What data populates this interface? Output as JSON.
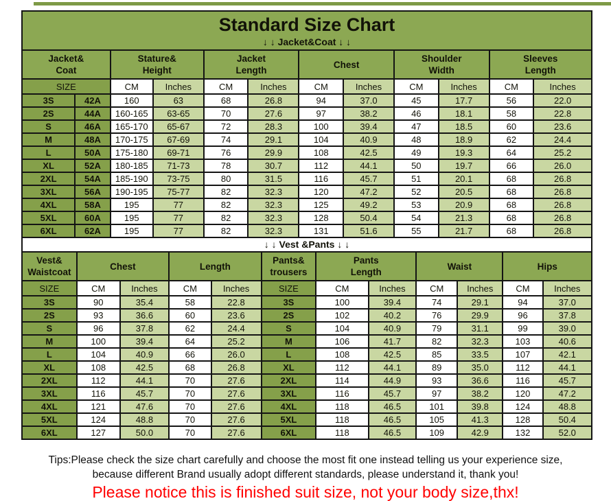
{
  "page": {
    "title": "Standard Size Chart",
    "jacket_banner": "↓ ↓  Jacket&Coat ↓ ↓",
    "vest_banner": "↓ ↓  Vest &Pants ↓ ↓",
    "tips_line1": "Tips:Please check the size chart carefully and choose the most fit one instead telling us your experience size,",
    "tips_line2": "because different Brand usually adopt different standards, please understand it, thank you!",
    "notice": "Please notice this is finished suit size, not your body size,thx!"
  },
  "colors": {
    "header_green": "#8CA853",
    "size_green": "#85A04A",
    "light_green": "#C9D7A2",
    "strip_green": "#7E9A46",
    "border_black": "#141414",
    "notice_red": "#FF0000"
  },
  "chart_data": [
    {
      "type": "table",
      "name": "jacket-coat-size-table",
      "section_label": "↓ ↓  Jacket&Coat ↓ ↓",
      "group_headers": [
        {
          "label": "Jacket&\nCoat",
          "span": 2
        },
        {
          "label": "Stature&\nHeight",
          "span": 2
        },
        {
          "label": "Jacket\nLength",
          "span": 2
        },
        {
          "label": "Chest",
          "span": 2
        },
        {
          "label": "Shoulder\nWidth",
          "span": 2
        },
        {
          "label": "Sleeves\nLength",
          "span": 2
        }
      ],
      "unit_row": [
        {
          "label": "SIZE",
          "span": 2,
          "type": "size"
        },
        {
          "label": "CM",
          "span": 1,
          "type": "cm"
        },
        {
          "label": "Inches",
          "span": 1,
          "type": "in"
        },
        {
          "label": "CM",
          "span": 1,
          "type": "cm"
        },
        {
          "label": "Inches",
          "span": 1,
          "type": "in"
        },
        {
          "label": "CM",
          "span": 1,
          "type": "cm"
        },
        {
          "label": "Inches",
          "span": 1,
          "type": "in"
        },
        {
          "label": "CM",
          "span": 1,
          "type": "cm"
        },
        {
          "label": "Inches",
          "span": 1,
          "type": "in"
        },
        {
          "label": "CM",
          "span": 1,
          "type": "cm"
        },
        {
          "label": "Inches",
          "span": 1,
          "type": "in"
        }
      ],
      "col_types": [
        "size",
        "size",
        "cm",
        "in",
        "cm",
        "in",
        "cm",
        "in",
        "cm",
        "in",
        "cm",
        "in"
      ],
      "col_widths_pct": [
        9.3,
        6.2,
        7.5,
        8.9,
        7.8,
        8.9,
        7.8,
        8.9,
        7.8,
        8.9,
        7.8,
        10.2
      ],
      "rows": [
        [
          "3S",
          "42A",
          "160",
          "63",
          "68",
          "26.8",
          "94",
          "37.0",
          "45",
          "17.7",
          "56",
          "22.0"
        ],
        [
          "2S",
          "44A",
          "160-165",
          "63-65",
          "70",
          "27.6",
          "97",
          "38.2",
          "46",
          "18.1",
          "58",
          "22.8"
        ],
        [
          "S",
          "46A",
          "165-170",
          "65-67",
          "72",
          "28.3",
          "100",
          "39.4",
          "47",
          "18.5",
          "60",
          "23.6"
        ],
        [
          "M",
          "48A",
          "170-175",
          "67-69",
          "74",
          "29.1",
          "104",
          "40.9",
          "48",
          "18.9",
          "62",
          "24.4"
        ],
        [
          "L",
          "50A",
          "175-180",
          "69-71",
          "76",
          "29.9",
          "108",
          "42.5",
          "49",
          "19.3",
          "64",
          "25.2"
        ],
        [
          "XL",
          "52A",
          "180-185",
          "71-73",
          "78",
          "30.7",
          "112",
          "44.1",
          "50",
          "19.7",
          "66",
          "26.0"
        ],
        [
          "2XL",
          "54A",
          "185-190",
          "73-75",
          "80",
          "31.5",
          "116",
          "45.7",
          "51",
          "20.1",
          "68",
          "26.8"
        ],
        [
          "3XL",
          "56A",
          "190-195",
          "75-77",
          "82",
          "32.3",
          "120",
          "47.2",
          "52",
          "20.5",
          "68",
          "26.8"
        ],
        [
          "4XL",
          "58A",
          "195",
          "77",
          "82",
          "32.3",
          "125",
          "49.2",
          "53",
          "20.9",
          "68",
          "26.8"
        ],
        [
          "5XL",
          "60A",
          "195",
          "77",
          "82",
          "32.3",
          "128",
          "50.4",
          "54",
          "21.3",
          "68",
          "26.8"
        ],
        [
          "6XL",
          "62A",
          "195",
          "77",
          "82",
          "32.3",
          "131",
          "51.6",
          "55",
          "21.7",
          "68",
          "26.8"
        ]
      ]
    },
    {
      "type": "table",
      "name": "vest-pants-size-table",
      "section_label": "↓ ↓  Vest &Pants ↓ ↓",
      "group_headers": [
        {
          "label": "Vest&\nWaistcoat",
          "span": 1
        },
        {
          "label": "Chest",
          "span": 2
        },
        {
          "label": "Length",
          "span": 2
        },
        {
          "label": "Pants&\ntrousers",
          "span": 1
        },
        {
          "label": "Pants\nLength",
          "span": 2
        },
        {
          "label": "Waist",
          "span": 2
        },
        {
          "label": "Hips",
          "span": 2
        }
      ],
      "unit_row": [
        {
          "label": "SIZE",
          "span": 1,
          "type": "size"
        },
        {
          "label": "CM",
          "span": 1,
          "type": "cm"
        },
        {
          "label": "Inches",
          "span": 1,
          "type": "in"
        },
        {
          "label": "CM",
          "span": 1,
          "type": "cm"
        },
        {
          "label": "Inches",
          "span": 1,
          "type": "in"
        },
        {
          "label": "SIZE",
          "span": 1,
          "type": "size"
        },
        {
          "label": "CM",
          "span": 1,
          "type": "cm"
        },
        {
          "label": "Inches",
          "span": 1,
          "type": "in"
        },
        {
          "label": "CM",
          "span": 1,
          "type": "cm"
        },
        {
          "label": "Inches",
          "span": 1,
          "type": "in"
        },
        {
          "label": "CM",
          "span": 1,
          "type": "cm"
        },
        {
          "label": "Inches",
          "span": 1,
          "type": "in"
        }
      ],
      "col_types": [
        "size",
        "cm",
        "in",
        "cm",
        "in",
        "size",
        "cm",
        "in",
        "cm",
        "in",
        "cm",
        "in"
      ],
      "col_widths_pct": [
        9.6,
        7.6,
        8.6,
        7.4,
        8.8,
        9.6,
        9.2,
        8.4,
        7.2,
        8.0,
        7.0,
        8.6
      ],
      "rows": [
        [
          "3S",
          "90",
          "35.4",
          "58",
          "22.8",
          "3S",
          "100",
          "39.4",
          "74",
          "29.1",
          "94",
          "37.0"
        ],
        [
          "2S",
          "93",
          "36.6",
          "60",
          "23.6",
          "2S",
          "102",
          "40.2",
          "76",
          "29.9",
          "96",
          "37.8"
        ],
        [
          "S",
          "96",
          "37.8",
          "62",
          "24.4",
          "S",
          "104",
          "40.9",
          "79",
          "31.1",
          "99",
          "39.0"
        ],
        [
          "M",
          "100",
          "39.4",
          "64",
          "25.2",
          "M",
          "106",
          "41.7",
          "82",
          "32.3",
          "103",
          "40.6"
        ],
        [
          "L",
          "104",
          "40.9",
          "66",
          "26.0",
          "L",
          "108",
          "42.5",
          "85",
          "33.5",
          "107",
          "42.1"
        ],
        [
          "XL",
          "108",
          "42.5",
          "68",
          "26.8",
          "XL",
          "112",
          "44.1",
          "89",
          "35.0",
          "112",
          "44.1"
        ],
        [
          "2XL",
          "112",
          "44.1",
          "70",
          "27.6",
          "2XL",
          "114",
          "44.9",
          "93",
          "36.6",
          "116",
          "45.7"
        ],
        [
          "3XL",
          "116",
          "45.7",
          "70",
          "27.6",
          "3XL",
          "116",
          "45.7",
          "97",
          "38.2",
          "120",
          "47.2"
        ],
        [
          "4XL",
          "121",
          "47.6",
          "70",
          "27.6",
          "4XL",
          "118",
          "46.5",
          "101",
          "39.8",
          "124",
          "48.8"
        ],
        [
          "5XL",
          "124",
          "48.8",
          "70",
          "27.6",
          "5XL",
          "118",
          "46.5",
          "105",
          "41.3",
          "128",
          "50.4"
        ],
        [
          "6XL",
          "127",
          "50.0",
          "70",
          "27.6",
          "6XL",
          "118",
          "46.5",
          "109",
          "42.9",
          "132",
          "52.0"
        ]
      ]
    }
  ]
}
